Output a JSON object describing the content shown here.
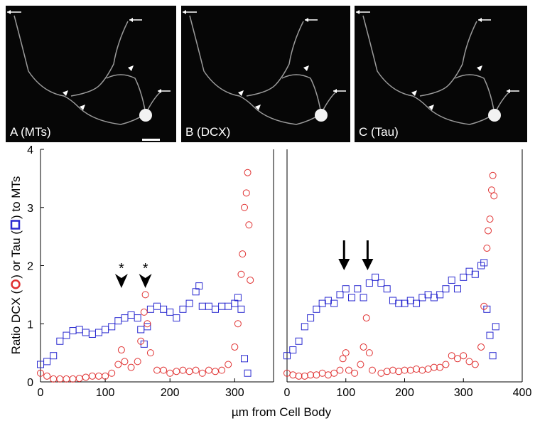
{
  "images": [
    {
      "label": "A (MTs)"
    },
    {
      "label": "B (DCX)"
    },
    {
      "label": "C (Tau)"
    }
  ],
  "chart_data": [
    {
      "type": "scatter",
      "ylabel": [
        "Ratio DCX (",
        ") or Tau (",
        ") to MTs"
      ],
      "xlabel": "µm from Cell Body",
      "xlim": [
        0,
        360
      ],
      "xticks": [
        0,
        100,
        200,
        300
      ],
      "ylim": [
        0,
        4
      ],
      "yticks": [
        0,
        1,
        2,
        3,
        4
      ],
      "annotations": [
        {
          "text": "*",
          "x": 125
        },
        {
          "text": "*",
          "x": 162
        }
      ],
      "series": [
        {
          "marker": "square",
          "color": "#2a2ad0",
          "x": [
            0,
            10,
            20,
            30,
            40,
            50,
            60,
            70,
            80,
            90,
            100,
            110,
            120,
            130,
            140,
            150,
            155,
            160,
            165,
            170,
            180,
            190,
            200,
            210,
            220,
            230,
            240,
            245,
            250,
            260,
            270,
            280,
            290,
            300,
            305,
            310,
            315,
            320
          ],
          "values": [
            0.3,
            0.35,
            0.45,
            0.7,
            0.8,
            0.88,
            0.9,
            0.85,
            0.82,
            0.85,
            0.9,
            0.95,
            1.05,
            1.1,
            1.15,
            1.1,
            0.9,
            0.65,
            0.95,
            1.25,
            1.3,
            1.25,
            1.2,
            1.1,
            1.25,
            1.35,
            1.55,
            1.65,
            1.3,
            1.3,
            1.25,
            1.3,
            1.3,
            1.35,
            1.45,
            1.25,
            0.4,
            0.15
          ]
        },
        {
          "marker": "circle",
          "color": "#e03030",
          "x": [
            0,
            10,
            20,
            30,
            40,
            50,
            60,
            70,
            80,
            90,
            100,
            110,
            120,
            125,
            130,
            140,
            150,
            155,
            160,
            162,
            165,
            170,
            180,
            190,
            200,
            210,
            220,
            230,
            240,
            250,
            260,
            270,
            280,
            290,
            300,
            305,
            310,
            312,
            315,
            318,
            320,
            322,
            324
          ],
          "values": [
            0.15,
            0.1,
            0.05,
            0.05,
            0.05,
            0.05,
            0.06,
            0.08,
            0.1,
            0.1,
            0.1,
            0.15,
            0.3,
            0.55,
            0.35,
            0.25,
            0.35,
            0.7,
            1.2,
            1.5,
            1.0,
            0.5,
            0.2,
            0.2,
            0.15,
            0.18,
            0.2,
            0.18,
            0.2,
            0.15,
            0.2,
            0.18,
            0.2,
            0.3,
            0.6,
            1.0,
            1.85,
            2.2,
            3.0,
            3.25,
            3.6,
            2.7,
            1.75
          ]
        }
      ]
    },
    {
      "type": "scatter",
      "xlim": [
        0,
        400
      ],
      "xticks": [
        0,
        100,
        200,
        300,
        400
      ],
      "ylim": [
        0,
        4
      ],
      "arrows_x": [
        97,
        137
      ],
      "series": [
        {
          "marker": "square",
          "color": "#2a2ad0",
          "x": [
            0,
            10,
            20,
            30,
            40,
            50,
            60,
            70,
            80,
            90,
            100,
            110,
            120,
            130,
            140,
            150,
            160,
            170,
            180,
            190,
            200,
            210,
            220,
            230,
            240,
            250,
            260,
            270,
            280,
            290,
            300,
            310,
            320,
            330,
            335,
            340,
            345,
            350,
            355
          ],
          "values": [
            0.45,
            0.55,
            0.7,
            0.95,
            1.1,
            1.25,
            1.35,
            1.4,
            1.35,
            1.5,
            1.6,
            1.45,
            1.6,
            1.45,
            1.7,
            1.8,
            1.7,
            1.6,
            1.4,
            1.35,
            1.35,
            1.4,
            1.35,
            1.45,
            1.5,
            1.45,
            1.5,
            1.6,
            1.75,
            1.6,
            1.8,
            1.9,
            1.85,
            2.0,
            2.05,
            1.25,
            0.8,
            0.45,
            0.95
          ]
        },
        {
          "marker": "circle",
          "color": "#e03030",
          "x": [
            0,
            10,
            20,
            30,
            40,
            50,
            60,
            70,
            80,
            90,
            95,
            100,
            105,
            115,
            125,
            130,
            135,
            140,
            145,
            160,
            170,
            180,
            190,
            200,
            210,
            220,
            230,
            240,
            250,
            260,
            270,
            280,
            290,
            300,
            310,
            320,
            330,
            335,
            340,
            342,
            345,
            348,
            350,
            352
          ],
          "values": [
            0.15,
            0.12,
            0.1,
            0.1,
            0.12,
            0.12,
            0.15,
            0.12,
            0.15,
            0.2,
            0.4,
            0.5,
            0.2,
            0.15,
            0.3,
            0.6,
            1.1,
            0.5,
            0.2,
            0.15,
            0.18,
            0.2,
            0.18,
            0.2,
            0.2,
            0.22,
            0.2,
            0.22,
            0.25,
            0.25,
            0.3,
            0.45,
            0.4,
            0.45,
            0.35,
            0.3,
            0.6,
            1.3,
            2.3,
            2.6,
            2.8,
            3.3,
            3.55,
            3.2
          ]
        }
      ]
    }
  ]
}
